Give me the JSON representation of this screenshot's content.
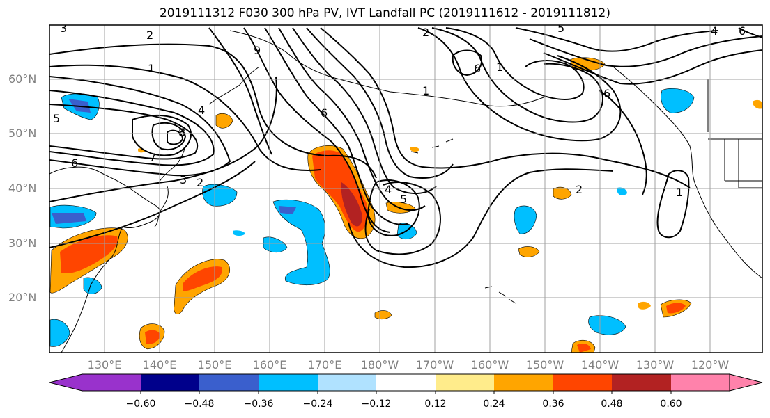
{
  "title": "2019111312 F030 300 hPa PV, IVT Landfall PC (2019111612 - 2019111812)",
  "lat_labels": [
    "60°N",
    "50°N",
    "40°N",
    "30°N",
    "20°N"
  ],
  "lon_labels": [
    "130°E",
    "140°E",
    "150°E",
    "160°E",
    "170°E",
    "180°W",
    "170°W",
    "160°W",
    "150°W",
    "140°W",
    "130°W",
    "120°W"
  ],
  "contour_labels": [
    "3",
    "2",
    "1",
    "5",
    "4",
    "6",
    "7",
    "8",
    "9",
    "6",
    "3",
    "2",
    "1",
    "6",
    "5",
    "4",
    "2",
    "1",
    "6",
    "5",
    "6",
    "4",
    "2",
    "1"
  ],
  "colorbar": {
    "ticks": [
      "−0.60",
      "−0.48",
      "−0.36",
      "−0.24",
      "−0.12",
      "0.12",
      "0.24",
      "0.36",
      "0.48",
      "0.60"
    ],
    "colors": [
      "#9932cc",
      "#00008b",
      "#3a5fcd",
      "#00bfff",
      "#b0e2ff",
      "#ffffff",
      "#ffec8b",
      "#ffa500",
      "#ff4500",
      "#b22222",
      "#ff82ab"
    ]
  },
  "colors": {
    "frame": "#000000",
    "grid": "#a0a0a0",
    "pv_contour": "#000000",
    "coast": "#000000"
  }
}
